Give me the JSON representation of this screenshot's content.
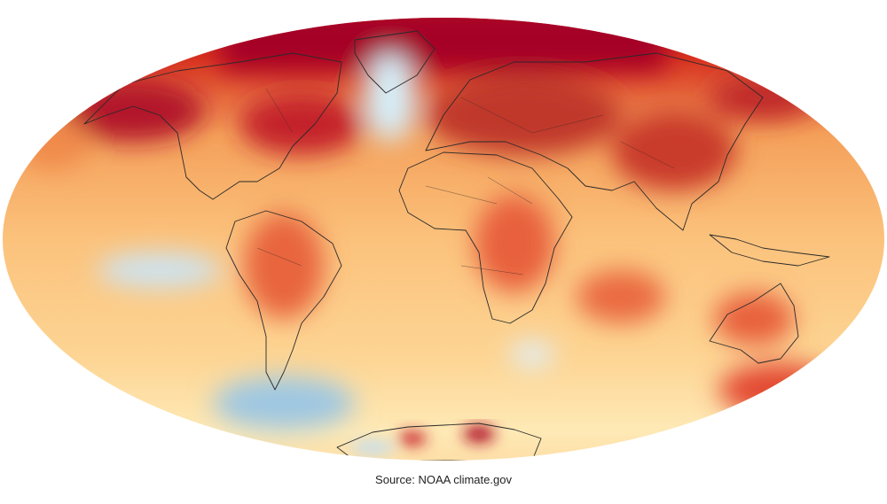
{
  "caption": "Source: NOAA climate.gov"
}
